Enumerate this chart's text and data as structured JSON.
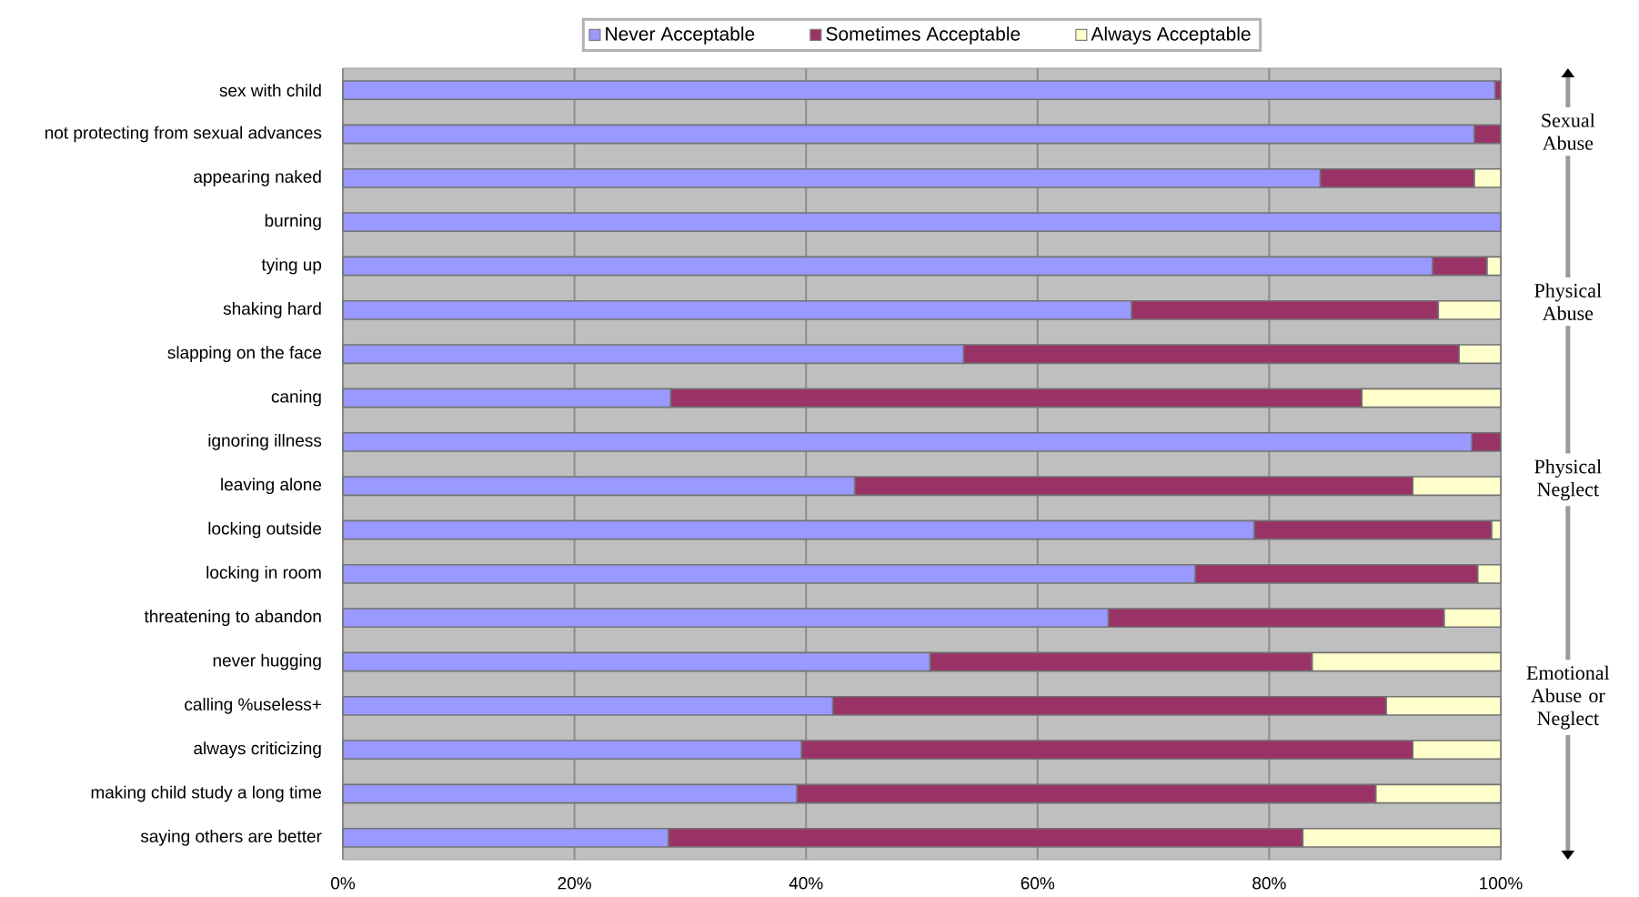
{
  "chart_data": {
    "type": "bar",
    "orientation": "horizontal",
    "stacked": true,
    "categories": [
      "sex with child",
      "not protecting from sexual advances",
      "appearing naked",
      "burning",
      "tying up",
      "shaking hard",
      "slapping on the face",
      "caning",
      "ignoring illness",
      "leaving alone",
      "locking outside",
      "locking in room",
      "threatening to abandon",
      "never hugging",
      "calling %useless+",
      "always criticizing",
      "making child study a long time",
      "saying others are better"
    ],
    "series": [
      {
        "name": "Never Acceptable",
        "color": "#9999ff",
        "values": [
          99.5,
          97.7,
          84.4,
          100,
          94.1,
          68.1,
          53.6,
          28.3,
          97.5,
          44.2,
          78.7,
          73.6,
          66.1,
          50.7,
          42.3,
          39.6,
          39.2,
          28.1
        ]
      },
      {
        "name": "Sometimes Acceptable",
        "color": "#993366",
        "values": [
          0.5,
          2.3,
          13.3,
          0,
          4.7,
          26.5,
          42.8,
          59.7,
          2.5,
          48.2,
          20.5,
          24.4,
          29.0,
          33.0,
          47.8,
          52.8,
          50.0,
          54.8
        ]
      },
      {
        "name": "Always Acceptable",
        "color": "#ffffcc",
        "values": [
          0,
          0,
          2.3,
          0,
          1.2,
          5.4,
          3.6,
          12.0,
          0,
          7.6,
          0.8,
          2.0,
          4.9,
          16.3,
          9.9,
          7.6,
          10.8,
          17.1
        ]
      }
    ],
    "xlim": [
      0,
      100
    ],
    "xticks": [
      {
        "value": 0,
        "label": "0%"
      },
      {
        "value": 20,
        "label": "20%"
      },
      {
        "value": 40,
        "label": "40%"
      },
      {
        "value": 60,
        "label": "60%"
      },
      {
        "value": 80,
        "label": "80%"
      },
      {
        "value": 100,
        "label": "100%"
      }
    ],
    "grid": "x",
    "legend": "top",
    "annotations": [
      "Sexual Abuse",
      "Physical Abuse",
      "Physical Neglect",
      "Emotional Abuse or Neglect"
    ]
  }
}
